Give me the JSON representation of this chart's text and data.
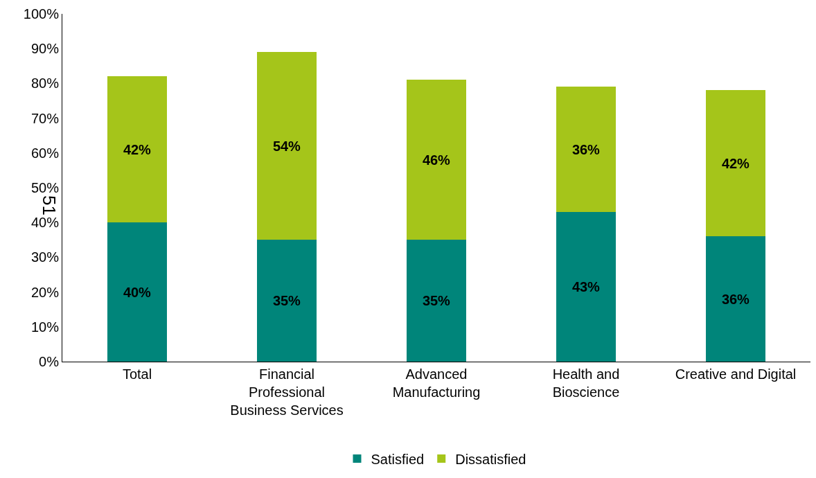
{
  "chart_data": {
    "type": "bar",
    "stacked": true,
    "categories": [
      "Total",
      "Financial\nProfessional\nBusiness Services",
      "Advanced\nManufacturing",
      "Health and\nBioscience",
      "Creative and Digital"
    ],
    "series": [
      {
        "name": "Satisfied",
        "color": "#00857a",
        "values": [
          40,
          35,
          35,
          43,
          36
        ],
        "value_labels": [
          "40%",
          "35%",
          "35%",
          "43%",
          "36%"
        ]
      },
      {
        "name": "Dissatisfied",
        "color": "#a5c51a",
        "values": [
          42,
          54,
          46,
          36,
          42
        ],
        "value_labels": [
          "42%",
          "54%",
          "46%",
          "36%",
          "42%"
        ]
      }
    ],
    "ylim": [
      0,
      100
    ],
    "yticks": [
      {
        "value": 0,
        "label": "0%"
      },
      {
        "value": 10,
        "label": "10%"
      },
      {
        "value": 20,
        "label": "20%"
      },
      {
        "value": 30,
        "label": "30%"
      },
      {
        "value": 40,
        "label": "40%"
      },
      {
        "value": 50,
        "label": "50%"
      },
      {
        "value": 60,
        "label": "60%"
      },
      {
        "value": 70,
        "label": "70%"
      },
      {
        "value": 80,
        "label": "80%"
      },
      {
        "value": 90,
        "label": "90%"
      },
      {
        "value": 100,
        "label": "100%"
      }
    ],
    "legend": "bottom",
    "annotations": [
      "51"
    ]
  }
}
